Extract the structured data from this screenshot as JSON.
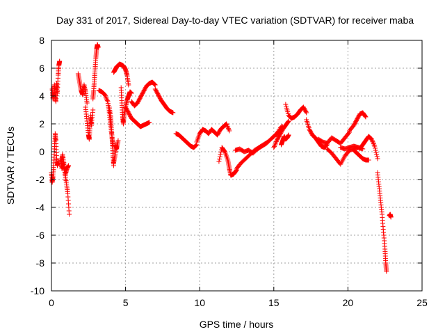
{
  "chart_data": {
    "type": "scatter",
    "title": "Day 331 of 2017, Sidereal Day-to-day VTEC variation (SDTVAR) for receiver maba",
    "xlabel": "GPS time / hours",
    "ylabel": "SDTVAR / TECUs",
    "xlim": [
      0,
      25
    ],
    "ylim": [
      -10,
      8
    ],
    "xticks": [
      0,
      5,
      10,
      15,
      20,
      25
    ],
    "yticks": [
      -10,
      -8,
      -6,
      -4,
      -2,
      0,
      2,
      4,
      6,
      8
    ],
    "grid": true,
    "marker": "+",
    "series": [
      {
        "name": "SDTVAR",
        "color": "#ff0000",
        "segments": [
          {
            "x": [
              0.0,
              0.05,
              0.1,
              0.15,
              0.2,
              0.25,
              0.3,
              0.35,
              0.4,
              0.45
            ],
            "y": [
              -1.5,
              -2.2,
              -1.8,
              -1.0,
              0.2,
              1.3,
              0.8,
              -0.5,
              -1.0,
              -0.8
            ]
          },
          {
            "x": [
              0.05,
              0.1,
              0.15,
              0.2,
              0.25,
              0.3,
              0.35,
              0.4,
              0.45,
              0.5,
              0.55
            ],
            "y": [
              4.5,
              3.8,
              4.2,
              4.8,
              4.0,
              3.6,
              4.9,
              4.2,
              5.5,
              6.2,
              6.5
            ]
          },
          {
            "x": [
              0.6,
              0.7,
              0.8,
              0.9,
              1.0,
              1.1,
              1.2
            ],
            "y": [
              -0.5,
              -1.2,
              -0.8,
              -1.5,
              -2.2,
              -3.0,
              -4.5
            ]
          },
          {
            "x": [
              0.65,
              0.75,
              0.85,
              0.95,
              1.05,
              1.15
            ],
            "y": [
              -0.8,
              -0.2,
              -0.9,
              -1.6,
              -1.2,
              -1.0
            ]
          },
          {
            "x": [
              1.8,
              1.9,
              2.0,
              2.1,
              2.2,
              2.3,
              2.4
            ],
            "y": [
              5.6,
              5.0,
              4.4,
              4.1,
              4.8,
              4.3,
              3.5
            ]
          },
          {
            "x": [
              2.3,
              2.4,
              2.5,
              2.55,
              2.6,
              2.65,
              2.7,
              2.8
            ],
            "y": [
              3.2,
              2.2,
              1.2,
              0.9,
              1.8,
              2.6,
              1.9,
              3.0
            ]
          },
          {
            "x": [
              2.8,
              2.85,
              2.9,
              2.95,
              3.0,
              3.05,
              3.1,
              3.15
            ],
            "y": [
              3.8,
              4.4,
              5.2,
              6.0,
              6.8,
              7.4,
              7.7,
              7.5
            ]
          },
          {
            "x": [
              3.2,
              3.4,
              3.6,
              3.8,
              3.9,
              4.0,
              4.1,
              4.15,
              4.2
            ],
            "y": [
              4.4,
              4.3,
              4.1,
              3.6,
              2.8,
              1.8,
              0.8,
              -0.3,
              -1.0
            ]
          },
          {
            "x": [
              4.2,
              4.3,
              4.35,
              4.4,
              4.5
            ],
            "y": [
              -0.8,
              -0.2,
              0.5,
              0.2,
              0.8
            ]
          },
          {
            "x": [
              3.9,
              4.0,
              4.05,
              4.1,
              4.15
            ],
            "y": [
              3.2,
              2.5,
              1.6,
              0.9,
              0.4
            ]
          },
          {
            "x": [
              4.2,
              4.3,
              4.4,
              4.5,
              4.6,
              4.7,
              4.8,
              4.9,
              5.0,
              5.1,
              5.2
            ],
            "y": [
              5.7,
              5.9,
              6.1,
              6.2,
              6.3,
              6.25,
              6.2,
              6.1,
              5.9,
              5.5,
              4.8
            ]
          },
          {
            "x": [
              4.7,
              4.75,
              4.8,
              4.85,
              4.9,
              5.0,
              5.1,
              5.2,
              5.3,
              5.4
            ],
            "y": [
              4.6,
              3.5,
              2.5,
              2.0,
              2.6,
              3.2,
              3.7,
              4.0,
              4.3,
              4.2
            ]
          },
          {
            "x": [
              5.0,
              5.2,
              5.4,
              5.6,
              5.8,
              6.0,
              6.2,
              6.4,
              6.6
            ],
            "y": [
              3.2,
              2.8,
              2.4,
              2.2,
              2.0,
              1.8,
              1.9,
              2.0,
              2.1
            ]
          },
          {
            "x": [
              5.4,
              5.6,
              5.8,
              6.0,
              6.2,
              6.4,
              6.6,
              6.8,
              7.0
            ],
            "y": [
              3.6,
              3.3,
              3.5,
              3.9,
              4.3,
              4.7,
              4.9,
              5.0,
              4.8
            ]
          },
          {
            "x": [
              7.0,
              7.2,
              7.4,
              7.6,
              7.8,
              8.0,
              8.2
            ],
            "y": [
              4.5,
              4.1,
              3.7,
              3.4,
              3.1,
              2.9,
              2.8
            ]
          },
          {
            "x": [
              8.4,
              8.6,
              8.8,
              9.0,
              9.2,
              9.4,
              9.6,
              9.8
            ],
            "y": [
              1.3,
              1.2,
              1.0,
              0.8,
              0.6,
              0.4,
              0.3,
              0.5
            ]
          },
          {
            "x": [
              9.8,
              10.0,
              10.2,
              10.4,
              10.6,
              10.8,
              11.0,
              11.2,
              11.4,
              11.6,
              11.8,
              12.0
            ],
            "y": [
              0.7,
              1.3,
              1.6,
              1.5,
              1.3,
              1.6,
              1.4,
              1.2,
              1.6,
              1.8,
              2.0,
              1.5
            ]
          },
          {
            "x": [
              11.3,
              11.5,
              11.7,
              11.9,
              12.0,
              12.1,
              12.3,
              12.5
            ],
            "y": [
              -0.7,
              0.3,
              0.0,
              -0.6,
              -1.2,
              -1.7,
              -1.6,
              -1.3
            ]
          },
          {
            "x": [
              12.5,
              12.8,
              13.1,
              13.4,
              13.7,
              14.0,
              14.3,
              14.6,
              14.9,
              15.2,
              15.5
            ],
            "y": [
              -1.2,
              -0.8,
              -0.5,
              -0.2,
              0.1,
              0.3,
              0.5,
              0.7,
              1.0,
              1.3,
              1.8
            ]
          },
          {
            "x": [
              12.4,
              12.7,
              13.0,
              13.3,
              13.6,
              13.9,
              14.2,
              14.5,
              14.8,
              15.1,
              15.4,
              15.6
            ],
            "y": [
              0.1,
              0.2,
              0.0,
              0.1,
              -0.1,
              0.2,
              0.4,
              0.6,
              0.9,
              1.2,
              1.4,
              1.8
            ]
          },
          {
            "x": [
              15.0,
              15.2,
              15.4,
              15.6,
              15.8,
              16.0
            ],
            "y": [
              0.3,
              0.8,
              1.2,
              1.6,
              1.9,
              2.2
            ]
          },
          {
            "x": [
              15.5,
              15.6,
              15.7,
              15.8,
              15.9,
              16.0
            ],
            "y": [
              0.5,
              0.8,
              1.1,
              0.9,
              1.0,
              1.2
            ]
          },
          {
            "x": [
              15.8,
              16.0,
              16.2,
              16.4,
              16.6,
              16.8,
              17.0,
              17.2
            ],
            "y": [
              3.4,
              2.6,
              2.4,
              2.5,
              2.7,
              3.0,
              3.2,
              2.8
            ]
          },
          {
            "x": [
              17.2,
              17.4,
              17.6,
              17.8,
              18.0,
              18.2,
              18.4,
              18.6
            ],
            "y": [
              2.3,
              1.6,
              1.2,
              1.0,
              0.7,
              0.4,
              0.3,
              0.5
            ]
          },
          {
            "x": [
              18.0,
              18.3,
              18.6,
              18.9,
              19.2,
              19.5,
              19.8,
              20.1
            ],
            "y": [
              0.9,
              0.7,
              0.6,
              1.0,
              0.8,
              0.6,
              1.0,
              1.4
            ]
          },
          {
            "x": [
              18.6,
              18.9,
              19.2,
              19.5,
              19.8,
              20.1,
              20.4,
              20.7
            ],
            "y": [
              0.2,
              -0.1,
              -0.5,
              -0.9,
              -0.3,
              0.1,
              0.2,
              0.3
            ]
          },
          {
            "x": [
              19.5,
              19.8,
              20.1,
              20.4,
              20.7,
              21.0
            ],
            "y": [
              0.3,
              0.2,
              0.3,
              0.4,
              0.3,
              0.2
            ]
          },
          {
            "x": [
              20.1,
              20.4,
              20.6,
              20.8,
              21.0,
              21.2
            ],
            "y": [
              1.5,
              1.9,
              2.3,
              2.7,
              2.8,
              2.5
            ]
          },
          {
            "x": [
              20.4,
              20.6,
              20.8,
              21.0,
              21.2,
              21.4
            ],
            "y": [
              0.1,
              -0.1,
              -0.3,
              -0.5,
              -0.6,
              -0.6
            ]
          },
          {
            "x": [
              20.8,
              21.0,
              21.2,
              21.4,
              21.6,
              21.8,
              22.0
            ],
            "y": [
              0.2,
              0.5,
              0.8,
              1.1,
              0.9,
              0.4,
              -0.5
            ]
          },
          {
            "x": [
              22.0,
              22.1,
              22.2,
              22.3,
              22.4,
              22.5,
              22.55,
              22.6
            ],
            "y": [
              -1.5,
              -2.5,
              -3.5,
              -4.5,
              -5.8,
              -7.0,
              -8.0,
              -8.6
            ]
          },
          {
            "x": [
              22.8,
              22.85,
              22.9
            ],
            "y": [
              -4.6,
              -4.5,
              -4.7
            ]
          }
        ]
      }
    ]
  }
}
